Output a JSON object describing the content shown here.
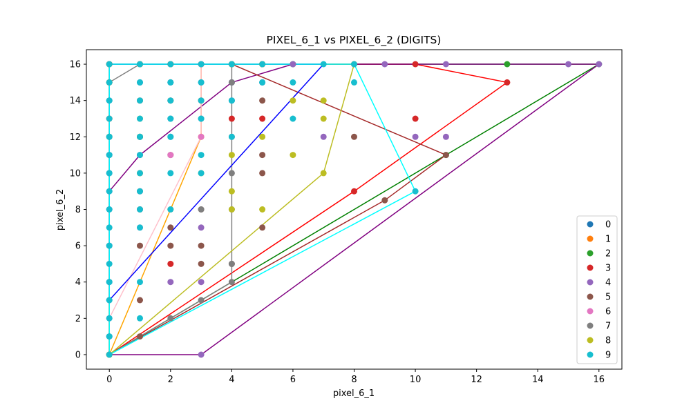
{
  "chart_data": {
    "type": "scatter",
    "title": "PIXEL_6_1 vs PIXEL_6_2 (DIGITS)",
    "xlabel": "pixel_6_1",
    "ylabel": "pixel_6_2",
    "xlim": [
      -0.75,
      16.75
    ],
    "ylim": [
      -0.8,
      16.8
    ],
    "xticks": [
      0,
      2,
      4,
      6,
      8,
      10,
      12,
      14,
      16
    ],
    "yticks": [
      0,
      2,
      4,
      6,
      8,
      10,
      12,
      14,
      16
    ],
    "grid": false,
    "legend_position": "lower-right",
    "series": [
      {
        "name": "0",
        "color": "#1f77b4",
        "points": [
          [
            0,
            0
          ],
          [
            0,
            16
          ],
          [
            0,
            15
          ],
          [
            0,
            14
          ],
          [
            0,
            12
          ],
          [
            0,
            11
          ],
          [
            0,
            10
          ],
          [
            0,
            8
          ],
          [
            0,
            6
          ],
          [
            0,
            4
          ],
          [
            0,
            3
          ],
          [
            0,
            1
          ],
          [
            1,
            16
          ],
          [
            1,
            15
          ],
          [
            1,
            14
          ],
          [
            1,
            12
          ],
          [
            2,
            16
          ],
          [
            2,
            15
          ],
          [
            2,
            14
          ],
          [
            2,
            13
          ],
          [
            2,
            12
          ],
          [
            3,
            16
          ],
          [
            3,
            15
          ],
          [
            3,
            14
          ],
          [
            3,
            13
          ],
          [
            4,
            16
          ],
          [
            4,
            15
          ],
          [
            4,
            14
          ],
          [
            5,
            16
          ],
          [
            5,
            15
          ],
          [
            6,
            16
          ]
        ]
      },
      {
        "name": "1",
        "color": "#ff7f0e",
        "points": [
          [
            0,
            0
          ],
          [
            0,
            16
          ],
          [
            0,
            15
          ],
          [
            0,
            13
          ],
          [
            1,
            16
          ],
          [
            1,
            14
          ],
          [
            1,
            12
          ],
          [
            1,
            10
          ],
          [
            2,
            16
          ],
          [
            2,
            14
          ],
          [
            2,
            8
          ],
          [
            3,
            16
          ],
          [
            3,
            14
          ],
          [
            3,
            12
          ]
        ]
      },
      {
        "name": "2",
        "color": "#2ca02c",
        "points": [
          [
            0,
            0
          ],
          [
            0,
            16
          ],
          [
            0,
            12
          ],
          [
            1,
            16
          ],
          [
            1,
            12
          ],
          [
            2,
            16
          ],
          [
            3,
            16
          ],
          [
            4,
            16
          ],
          [
            5,
            16
          ],
          [
            6,
            16
          ],
          [
            11,
            11
          ],
          [
            13,
            16
          ],
          [
            16,
            16
          ]
        ]
      },
      {
        "name": "3",
        "color": "#d62728",
        "points": [
          [
            0,
            0
          ],
          [
            0,
            16
          ],
          [
            0,
            13
          ],
          [
            1,
            16
          ],
          [
            2,
            16
          ],
          [
            2,
            5
          ],
          [
            3,
            16
          ],
          [
            4,
            16
          ],
          [
            4,
            13
          ],
          [
            5,
            16
          ],
          [
            5,
            13
          ],
          [
            8,
            9
          ],
          [
            8,
            16
          ],
          [
            10,
            16
          ],
          [
            10,
            13
          ],
          [
            13,
            15
          ]
        ]
      },
      {
        "name": "4",
        "color": "#9467bd",
        "points": [
          [
            0,
            9
          ],
          [
            0,
            16
          ],
          [
            1,
            11
          ],
          [
            1,
            16
          ],
          [
            2,
            4
          ],
          [
            2,
            16
          ],
          [
            3,
            7
          ],
          [
            3,
            4
          ],
          [
            3,
            0
          ],
          [
            4,
            15
          ],
          [
            4,
            16
          ],
          [
            6,
            16
          ],
          [
            7,
            12
          ],
          [
            9,
            16
          ],
          [
            10,
            12
          ],
          [
            11,
            16
          ],
          [
            11,
            12
          ],
          [
            15,
            16
          ],
          [
            16,
            16
          ]
        ]
      },
      {
        "name": "5",
        "color": "#8c564b",
        "points": [
          [
            0,
            0
          ],
          [
            0,
            16
          ],
          [
            1,
            8
          ],
          [
            1,
            6
          ],
          [
            1,
            3
          ],
          [
            1,
            1
          ],
          [
            2,
            11
          ],
          [
            2,
            7
          ],
          [
            2,
            6
          ],
          [
            3,
            8
          ],
          [
            3,
            6
          ],
          [
            3,
            5
          ],
          [
            4,
            16
          ],
          [
            4,
            5
          ],
          [
            5,
            14
          ],
          [
            5,
            11
          ],
          [
            5,
            10
          ],
          [
            5,
            7
          ],
          [
            8,
            12
          ],
          [
            9,
            8.5
          ],
          [
            11,
            11
          ]
        ]
      },
      {
        "name": "6",
        "color": "#e377c2",
        "points": [
          [
            0,
            2
          ],
          [
            0,
            16
          ],
          [
            1,
            9
          ],
          [
            1,
            7
          ],
          [
            2,
            11
          ],
          [
            2,
            16
          ],
          [
            3,
            16
          ],
          [
            3,
            12
          ]
        ]
      },
      {
        "name": "7",
        "color": "#7f7f7f",
        "points": [
          [
            0,
            0
          ],
          [
            0,
            15
          ],
          [
            0,
            16
          ],
          [
            1,
            16
          ],
          [
            1,
            9
          ],
          [
            1,
            8
          ],
          [
            2,
            2
          ],
          [
            3,
            3
          ],
          [
            3,
            8
          ],
          [
            4,
            4
          ],
          [
            4,
            16
          ],
          [
            4,
            15
          ],
          [
            4,
            12
          ],
          [
            4,
            10
          ],
          [
            4,
            8
          ],
          [
            4,
            5
          ]
        ]
      },
      {
        "name": "8",
        "color": "#bcbd22",
        "points": [
          [
            0,
            0
          ],
          [
            0,
            15
          ],
          [
            0,
            16
          ],
          [
            1,
            13
          ],
          [
            1,
            10
          ],
          [
            1,
            16
          ],
          [
            2,
            16
          ],
          [
            3,
            10
          ],
          [
            4,
            16
          ],
          [
            4,
            11
          ],
          [
            4,
            9
          ],
          [
            4,
            8
          ],
          [
            5,
            16
          ],
          [
            5,
            12
          ],
          [
            5,
            8
          ],
          [
            6,
            14
          ],
          [
            6,
            11
          ],
          [
            7,
            14
          ],
          [
            7,
            13
          ],
          [
            7,
            10
          ],
          [
            8,
            16
          ]
        ]
      },
      {
        "name": "9",
        "color": "#17becf",
        "points": [
          [
            0,
            0
          ],
          [
            0,
            16
          ],
          [
            0,
            15
          ],
          [
            0,
            14
          ],
          [
            0,
            13
          ],
          [
            0,
            12
          ],
          [
            0,
            11
          ],
          [
            0,
            10
          ],
          [
            0,
            9
          ],
          [
            0,
            8
          ],
          [
            0,
            7
          ],
          [
            0,
            6
          ],
          [
            0,
            5
          ],
          [
            0,
            4
          ],
          [
            0,
            3
          ],
          [
            0,
            2
          ],
          [
            0,
            1
          ],
          [
            1,
            16
          ],
          [
            1,
            15
          ],
          [
            1,
            14
          ],
          [
            1,
            13
          ],
          [
            1,
            12
          ],
          [
            1,
            11
          ],
          [
            1,
            10
          ],
          [
            1,
            9
          ],
          [
            1,
            8
          ],
          [
            1,
            7
          ],
          [
            1,
            4
          ],
          [
            1,
            2
          ],
          [
            2,
            16
          ],
          [
            2,
            15
          ],
          [
            2,
            14
          ],
          [
            2,
            13
          ],
          [
            2,
            12
          ],
          [
            2,
            10
          ],
          [
            2,
            8
          ],
          [
            3,
            16
          ],
          [
            3,
            15
          ],
          [
            3,
            14
          ],
          [
            3,
            13
          ],
          [
            3,
            11
          ],
          [
            3,
            10
          ],
          [
            4,
            16
          ],
          [
            4,
            14
          ],
          [
            4,
            12
          ],
          [
            5,
            16
          ],
          [
            5,
            15
          ],
          [
            6,
            13
          ],
          [
            6,
            15
          ],
          [
            7,
            16
          ],
          [
            8,
            16
          ],
          [
            8,
            15
          ],
          [
            10,
            9
          ]
        ]
      }
    ],
    "hull_lines": [
      {
        "color": "#ffa500",
        "points": [
          [
            0,
            0
          ],
          [
            3,
            12
          ],
          [
            3,
            16
          ],
          [
            0,
            16
          ],
          [
            0,
            0
          ]
        ]
      },
      {
        "color": "#008000",
        "points": [
          [
            0,
            0
          ],
          [
            11,
            11
          ],
          [
            16,
            16
          ],
          [
            0,
            16
          ],
          [
            0,
            0
          ]
        ]
      },
      {
        "color": "#ff0000",
        "points": [
          [
            0,
            0
          ],
          [
            8,
            9
          ],
          [
            13,
            15
          ],
          [
            10,
            16
          ],
          [
            0,
            16
          ],
          [
            0,
            0
          ]
        ]
      },
      {
        "color": "#800080",
        "points": [
          [
            0,
            0
          ],
          [
            3,
            0
          ],
          [
            16,
            16
          ],
          [
            6,
            16
          ],
          [
            4,
            15
          ],
          [
            1,
            11
          ],
          [
            0,
            9
          ],
          [
            0,
            0
          ]
        ]
      },
      {
        "color": "#a52a2a",
        "points": [
          [
            0,
            0
          ],
          [
            9,
            8.5
          ],
          [
            11,
            11
          ],
          [
            4,
            16
          ],
          [
            0,
            16
          ],
          [
            0,
            0
          ]
        ]
      },
      {
        "color": "#ffc0cb",
        "points": [
          [
            0,
            2
          ],
          [
            3,
            12
          ],
          [
            3,
            16
          ],
          [
            0,
            16
          ],
          [
            0,
            2
          ]
        ]
      },
      {
        "color": "#808080",
        "points": [
          [
            0,
            0
          ],
          [
            4,
            4
          ],
          [
            4,
            16
          ],
          [
            1,
            16
          ],
          [
            0,
            15
          ],
          [
            0,
            0
          ]
        ]
      },
      {
        "color": "#bcbd22",
        "points": [
          [
            0,
            0
          ],
          [
            7,
            10
          ],
          [
            8,
            16
          ],
          [
            0,
            16
          ],
          [
            0,
            0
          ]
        ]
      },
      {
        "color": "#0000ff",
        "points": [
          [
            0,
            3
          ],
          [
            7,
            16
          ],
          [
            0,
            16
          ],
          [
            0,
            3
          ]
        ]
      },
      {
        "color": "#00ffff",
        "points": [
          [
            0,
            0
          ],
          [
            10,
            9
          ],
          [
            8,
            16
          ],
          [
            0,
            16
          ],
          [
            0,
            0
          ]
        ]
      }
    ]
  }
}
